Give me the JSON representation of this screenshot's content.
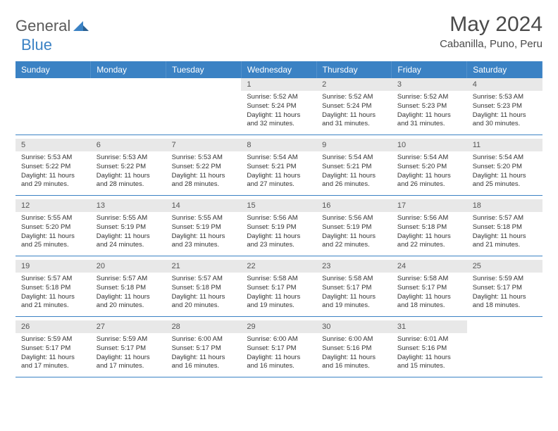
{
  "brand": {
    "part1": "General",
    "part2": "Blue",
    "accent_color": "#3b82c4"
  },
  "title": "May 2024",
  "location": "Cabanilla, Puno, Peru",
  "weekdays": [
    "Sunday",
    "Monday",
    "Tuesday",
    "Wednesday",
    "Thursday",
    "Friday",
    "Saturday"
  ],
  "header_bg": "#3b82c4",
  "daynum_bg": "#e8e8e8",
  "border_color": "#3b82c4",
  "weeks": [
    [
      null,
      null,
      null,
      {
        "n": "1",
        "sr": "5:52 AM",
        "ss": "5:24 PM",
        "dl": "11 hours and 32 minutes."
      },
      {
        "n": "2",
        "sr": "5:52 AM",
        "ss": "5:24 PM",
        "dl": "11 hours and 31 minutes."
      },
      {
        "n": "3",
        "sr": "5:52 AM",
        "ss": "5:23 PM",
        "dl": "11 hours and 31 minutes."
      },
      {
        "n": "4",
        "sr": "5:53 AM",
        "ss": "5:23 PM",
        "dl": "11 hours and 30 minutes."
      }
    ],
    [
      {
        "n": "5",
        "sr": "5:53 AM",
        "ss": "5:22 PM",
        "dl": "11 hours and 29 minutes."
      },
      {
        "n": "6",
        "sr": "5:53 AM",
        "ss": "5:22 PM",
        "dl": "11 hours and 28 minutes."
      },
      {
        "n": "7",
        "sr": "5:53 AM",
        "ss": "5:22 PM",
        "dl": "11 hours and 28 minutes."
      },
      {
        "n": "8",
        "sr": "5:54 AM",
        "ss": "5:21 PM",
        "dl": "11 hours and 27 minutes."
      },
      {
        "n": "9",
        "sr": "5:54 AM",
        "ss": "5:21 PM",
        "dl": "11 hours and 26 minutes."
      },
      {
        "n": "10",
        "sr": "5:54 AM",
        "ss": "5:20 PM",
        "dl": "11 hours and 26 minutes."
      },
      {
        "n": "11",
        "sr": "5:54 AM",
        "ss": "5:20 PM",
        "dl": "11 hours and 25 minutes."
      }
    ],
    [
      {
        "n": "12",
        "sr": "5:55 AM",
        "ss": "5:20 PM",
        "dl": "11 hours and 25 minutes."
      },
      {
        "n": "13",
        "sr": "5:55 AM",
        "ss": "5:19 PM",
        "dl": "11 hours and 24 minutes."
      },
      {
        "n": "14",
        "sr": "5:55 AM",
        "ss": "5:19 PM",
        "dl": "11 hours and 23 minutes."
      },
      {
        "n": "15",
        "sr": "5:56 AM",
        "ss": "5:19 PM",
        "dl": "11 hours and 23 minutes."
      },
      {
        "n": "16",
        "sr": "5:56 AM",
        "ss": "5:19 PM",
        "dl": "11 hours and 22 minutes."
      },
      {
        "n": "17",
        "sr": "5:56 AM",
        "ss": "5:18 PM",
        "dl": "11 hours and 22 minutes."
      },
      {
        "n": "18",
        "sr": "5:57 AM",
        "ss": "5:18 PM",
        "dl": "11 hours and 21 minutes."
      }
    ],
    [
      {
        "n": "19",
        "sr": "5:57 AM",
        "ss": "5:18 PM",
        "dl": "11 hours and 21 minutes."
      },
      {
        "n": "20",
        "sr": "5:57 AM",
        "ss": "5:18 PM",
        "dl": "11 hours and 20 minutes."
      },
      {
        "n": "21",
        "sr": "5:57 AM",
        "ss": "5:18 PM",
        "dl": "11 hours and 20 minutes."
      },
      {
        "n": "22",
        "sr": "5:58 AM",
        "ss": "5:17 PM",
        "dl": "11 hours and 19 minutes."
      },
      {
        "n": "23",
        "sr": "5:58 AM",
        "ss": "5:17 PM",
        "dl": "11 hours and 19 minutes."
      },
      {
        "n": "24",
        "sr": "5:58 AM",
        "ss": "5:17 PM",
        "dl": "11 hours and 18 minutes."
      },
      {
        "n": "25",
        "sr": "5:59 AM",
        "ss": "5:17 PM",
        "dl": "11 hours and 18 minutes."
      }
    ],
    [
      {
        "n": "26",
        "sr": "5:59 AM",
        "ss": "5:17 PM",
        "dl": "11 hours and 17 minutes."
      },
      {
        "n": "27",
        "sr": "5:59 AM",
        "ss": "5:17 PM",
        "dl": "11 hours and 17 minutes."
      },
      {
        "n": "28",
        "sr": "6:00 AM",
        "ss": "5:17 PM",
        "dl": "11 hours and 16 minutes."
      },
      {
        "n": "29",
        "sr": "6:00 AM",
        "ss": "5:17 PM",
        "dl": "11 hours and 16 minutes."
      },
      {
        "n": "30",
        "sr": "6:00 AM",
        "ss": "5:16 PM",
        "dl": "11 hours and 16 minutes."
      },
      {
        "n": "31",
        "sr": "6:01 AM",
        "ss": "5:16 PM",
        "dl": "11 hours and 15 minutes."
      },
      null
    ]
  ]
}
